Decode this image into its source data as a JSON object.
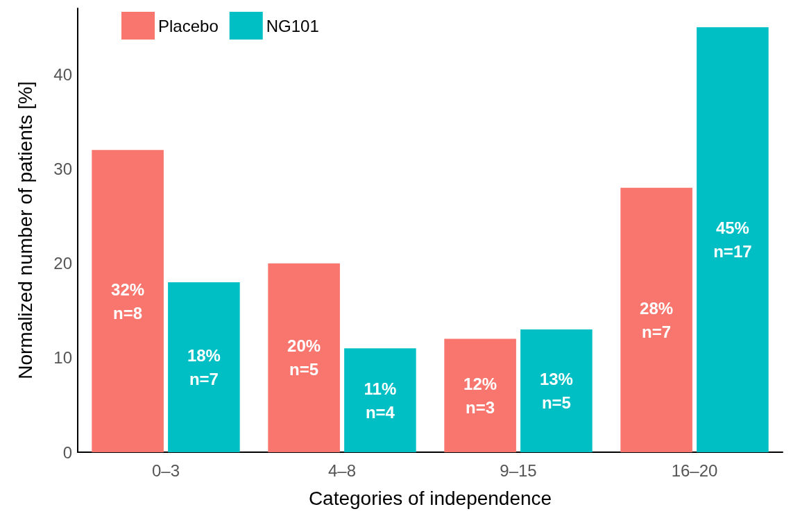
{
  "chart_data": {
    "type": "bar",
    "xlabel": "Categories of independence",
    "ylabel": "Normalized number of patients [%]",
    "categories": [
      "0–3",
      "4–8",
      "9–15",
      "16–20"
    ],
    "series": [
      {
        "name": "Placebo",
        "color": "#f8766d",
        "values": [
          32,
          20,
          12,
          28
        ],
        "value_labels": [
          "32%\nn=8",
          "20%\nn=5",
          "12%\nn=3",
          "28%\nn=7"
        ]
      },
      {
        "name": "NG101",
        "color": "#00bfc4",
        "values": [
          18,
          11,
          13,
          45
        ],
        "value_labels": [
          "18%\nn=7",
          "11%\nn=4",
          "13%\nn=5",
          "45%\nn=17"
        ]
      }
    ],
    "ylim": [
      0,
      47
    ],
    "yticks": [
      0,
      10,
      20,
      30,
      40
    ],
    "grid": false,
    "legend": "top left"
  }
}
